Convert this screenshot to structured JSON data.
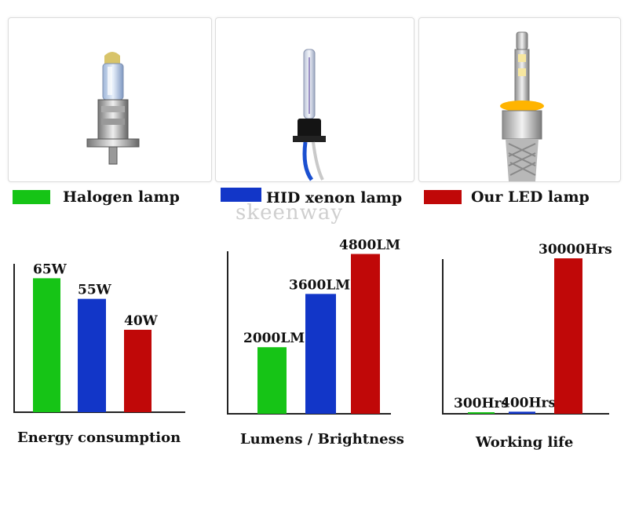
{
  "legend": [
    {
      "label": "Halogen lamp",
      "color": "#16c416"
    },
    {
      "label": "HID xenon lamp",
      "color": "#1236c8"
    },
    {
      "label": "Our LED lamp",
      "color": "#c00808"
    }
  ],
  "watermark": "skeenway",
  "photos": [
    {
      "icon": "halogen-bulb-icon"
    },
    {
      "icon": "hid-xenon-bulb-icon"
    },
    {
      "icon": "led-bulb-icon"
    }
  ],
  "chart_data": [
    {
      "type": "bar",
      "title": "Energy consumption",
      "categories": [
        "Halogen lamp",
        "HID xenon lamp",
        "Our LED lamp"
      ],
      "values": [
        65,
        55,
        40
      ],
      "data_labels": [
        "65W",
        "55W",
        "40W"
      ],
      "unit": "W",
      "ylim": [
        0,
        80
      ],
      "grid": false,
      "colors": [
        "#16c416",
        "#1236c8",
        "#c00808"
      ]
    },
    {
      "type": "bar",
      "title": "Lumens / Brightness",
      "categories": [
        "Halogen lamp",
        "HID xenon lamp",
        "Our LED lamp"
      ],
      "values": [
        2000,
        3600,
        4800
      ],
      "data_labels": [
        "2000LM",
        "3600LM",
        "4800LM"
      ],
      "unit": "LM",
      "ylim": [
        0,
        5000
      ],
      "grid": false,
      "colors": [
        "#16c416",
        "#1236c8",
        "#c00808"
      ]
    },
    {
      "type": "bar",
      "title": "Working life",
      "categories": [
        "Halogen lamp",
        "HID xenon lamp",
        "Our LED lamp"
      ],
      "values": [
        300,
        400,
        30000
      ],
      "data_labels": [
        "300Hrs",
        "400Hrs",
        "30000Hrs"
      ],
      "unit": "Hrs",
      "ylim": [
        0,
        30000
      ],
      "grid": false,
      "colors": [
        "#16c416",
        "#1236c8",
        "#c00808"
      ]
    }
  ]
}
